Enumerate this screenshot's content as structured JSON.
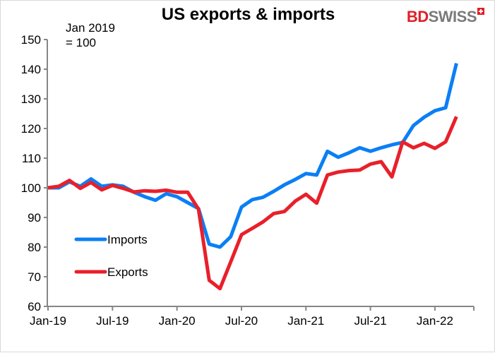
{
  "chart_data": {
    "type": "line",
    "title": "US exports & imports",
    "annotation": [
      "Jan 2019",
      "= 100"
    ],
    "logo": "BDSWISS",
    "xlabel": "",
    "ylabel": "",
    "ylim": [
      60,
      150
    ],
    "yticks": [
      60,
      70,
      80,
      90,
      100,
      110,
      120,
      130,
      140,
      150
    ],
    "xtick_labels": [
      "Jan-19",
      "Jul-19",
      "Jan-20",
      "Jul-20",
      "Jan-21",
      "Jul-21",
      "Jan-22"
    ],
    "x_start": "Jan-19",
    "x_end": "Mar-22",
    "legend_position": "left-inside",
    "grid": false,
    "series": [
      {
        "name": "Imports",
        "color": "#0a7ff5",
        "values": [
          100,
          100,
          102,
          100.5,
          103,
          100.5,
          101,
          100.5,
          98.5,
          97,
          95.8,
          98,
          97,
          95,
          93,
          81,
          80,
          83.5,
          93.5,
          96,
          96.8,
          98.8,
          101,
          102.8,
          104.8,
          104.3,
          112.3,
          110.3,
          111.8,
          113.5,
          112.3,
          113.5,
          114.5,
          115.3,
          121,
          123.8,
          126,
          127,
          142
        ]
      },
      {
        "name": "Exports",
        "color": "#e8202a",
        "values": [
          100,
          100.5,
          102.5,
          99.8,
          101.8,
          99.3,
          100.8,
          99.8,
          98.6,
          99,
          98.8,
          99.2,
          98.5,
          98.5,
          92.8,
          68.8,
          66,
          75,
          84.2,
          86.3,
          88.5,
          91.3,
          92,
          95.5,
          97.8,
          94.8,
          104.3,
          105.3,
          105.8,
          106,
          108,
          108.8,
          103.7,
          115.5,
          113.5,
          115,
          113.3,
          115.5,
          124
        ]
      }
    ]
  }
}
